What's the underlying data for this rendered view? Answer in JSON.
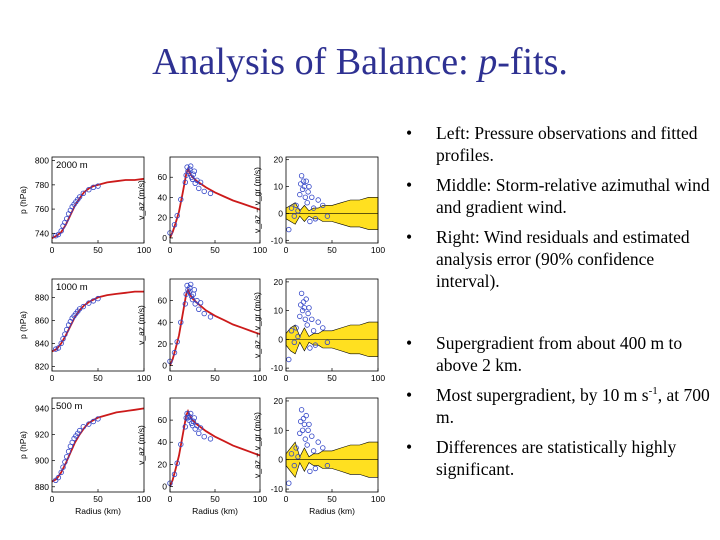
{
  "slide": {
    "title_prefix": "Analysis of Balance: ",
    "title_italic": "p",
    "title_suffix": "-fits.",
    "bullets_top": [
      "Left: Pressure observations and fitted profiles.",
      "Middle: Storm-relative azimuthal wind and gradient wind.",
      "Right: Wind residuals and estimated analysis error (90% confidence interval)."
    ],
    "bullets_bottom": [
      {
        "pre": "Supergradient from about 400 m to above 2 km.",
        "sup": "",
        "post": ""
      },
      {
        "pre": "Most supergradient, by 10 m s",
        "sup": "-1",
        "post": ", at 700 m."
      },
      {
        "pre": "Differences are statistically highly significant.",
        "sup": "",
        "post": ""
      }
    ],
    "bullet_char": "•"
  },
  "colors": {
    "fit_line": "#cc1a1a",
    "obs": "#3346c8",
    "confidence": "#ffe020",
    "title": "#2e3192"
  },
  "chart_data": [
    {
      "type": "scatter",
      "panel": "pressure-2000m",
      "annotation": "2000 m",
      "xlabel": "",
      "ylabel": "p (hPa)",
      "xlim": [
        0,
        100
      ],
      "ylim": [
        732,
        803
      ],
      "xticks": [
        "0",
        "50",
        "100"
      ],
      "yticks": [
        "740",
        "760",
        "780",
        "800"
      ],
      "fit": {
        "x": [
          0,
          5,
          10,
          15,
          20,
          25,
          30,
          35,
          40,
          45,
          50,
          60,
          70,
          80,
          90,
          100
        ],
        "y": [
          736,
          738,
          741,
          747,
          755,
          763,
          769,
          774,
          777,
          779,
          780,
          782,
          783,
          784,
          784,
          785
        ]
      },
      "obs": {
        "x": [
          4,
          7,
          10,
          12,
          14,
          16,
          18,
          20,
          22,
          24,
          26,
          28,
          30,
          34,
          40,
          45,
          50
        ],
        "y": [
          738,
          739,
          742,
          746,
          749,
          752,
          756,
          759,
          762,
          764,
          766,
          768,
          770,
          773,
          776,
          778,
          779
        ]
      }
    },
    {
      "type": "scatter",
      "panel": "pressure-1000m",
      "annotation": "1000 m",
      "xlabel": "",
      "ylabel": "p (hPa)",
      "xlim": [
        0,
        100
      ],
      "ylim": [
        816,
        896
      ],
      "xticks": [
        "0",
        "50",
        "100"
      ],
      "yticks": [
        "820",
        "840",
        "860",
        "880"
      ],
      "fit": {
        "x": [
          0,
          5,
          10,
          15,
          20,
          25,
          30,
          35,
          40,
          45,
          50,
          60,
          70,
          80,
          90,
          100
        ],
        "y": [
          833,
          835,
          840,
          847,
          855,
          863,
          869,
          873,
          876,
          878,
          880,
          882,
          883,
          884,
          885,
          885
        ]
      },
      "obs": {
        "x": [
          4,
          7,
          10,
          12,
          14,
          16,
          18,
          20,
          22,
          24,
          26,
          28,
          30,
          34,
          40,
          45,
          50
        ],
        "y": [
          835,
          836,
          840,
          844,
          848,
          852,
          856,
          859,
          862,
          864,
          866,
          868,
          870,
          872,
          875,
          877,
          879
        ]
      }
    },
    {
      "type": "scatter",
      "panel": "pressure-500m",
      "annotation": "500 m",
      "xlabel": "Radius (km)",
      "ylabel": "p (hPa)",
      "xlim": [
        0,
        100
      ],
      "ylim": [
        876,
        948
      ],
      "xticks": [
        "0",
        "50",
        "100"
      ],
      "yticks": [
        "880",
        "900",
        "920",
        "940"
      ],
      "fit": {
        "x": [
          0,
          5,
          10,
          15,
          20,
          25,
          30,
          35,
          40,
          45,
          50,
          60,
          70,
          80,
          90,
          100
        ],
        "y": [
          884,
          886,
          891,
          898,
          906,
          914,
          920,
          925,
          929,
          931,
          933,
          935,
          937,
          938,
          939,
          940
        ]
      },
      "obs": {
        "x": [
          4,
          7,
          10,
          12,
          14,
          16,
          18,
          20,
          22,
          24,
          26,
          28,
          30,
          34,
          40,
          45,
          50
        ],
        "y": [
          885,
          887,
          891,
          895,
          899,
          903,
          907,
          911,
          914,
          917,
          919,
          921,
          923,
          926,
          928,
          930,
          932
        ]
      }
    },
    {
      "type": "scatter",
      "panel": "wind-2000m",
      "xlabel": "",
      "ylabel": "v_az (m/s)",
      "xlim": [
        0,
        100
      ],
      "ylim": [
        -5,
        80
      ],
      "xticks": [
        "0",
        "50",
        "100"
      ],
      "yticks": [
        "0",
        "20",
        "40",
        "60"
      ],
      "fit": {
        "x": [
          0,
          3,
          6,
          10,
          14,
          18,
          20,
          22,
          25,
          30,
          40,
          50,
          60,
          70,
          80,
          90,
          100
        ],
        "y": [
          0,
          6,
          14,
          26,
          44,
          63,
          68,
          64,
          60,
          56,
          50,
          45,
          41,
          37,
          34,
          31,
          28
        ]
      },
      "obs": {
        "x": [
          0,
          5,
          8,
          12,
          17,
          18,
          19,
          20,
          21,
          22,
          23,
          24,
          25,
          26,
          27,
          28,
          30,
          32,
          34,
          38,
          45
        ],
        "y": [
          5,
          13,
          22,
          38,
          55,
          62,
          70,
          66,
          64,
          68,
          71,
          60,
          58,
          63,
          66,
          54,
          57,
          49,
          55,
          46,
          44
        ]
      }
    },
    {
      "type": "scatter",
      "panel": "wind-1000m",
      "xlabel": "",
      "ylabel": "v_az (m/s)",
      "xlim": [
        0,
        100
      ],
      "ylim": [
        -5,
        80
      ],
      "xticks": [
        "0",
        "50",
        "100"
      ],
      "yticks": [
        "0",
        "20",
        "40",
        "60"
      ],
      "fit": {
        "x": [
          0,
          3,
          6,
          10,
          14,
          18,
          20,
          22,
          25,
          30,
          40,
          50,
          60,
          70,
          80,
          90,
          100
        ],
        "y": [
          0,
          6,
          15,
          28,
          47,
          66,
          70,
          66,
          62,
          58,
          51,
          46,
          42,
          38,
          35,
          32,
          29
        ]
      },
      "obs": {
        "x": [
          0,
          5,
          8,
          12,
          17,
          18,
          19,
          20,
          21,
          22,
          23,
          24,
          25,
          26,
          27,
          28,
          30,
          32,
          34,
          38,
          45
        ],
        "y": [
          4,
          12,
          22,
          40,
          57,
          66,
          74,
          70,
          68,
          72,
          75,
          64,
          61,
          66,
          70,
          57,
          60,
          52,
          58,
          48,
          45
        ]
      }
    },
    {
      "type": "scatter",
      "panel": "wind-500m",
      "xlabel": "Radius (km)",
      "ylabel": "v_az (m/s)",
      "xlim": [
        0,
        100
      ],
      "ylim": [
        -5,
        80
      ],
      "xticks": [
        "0",
        "50",
        "100"
      ],
      "yticks": [
        "0",
        "20",
        "40",
        "60"
      ],
      "fit": {
        "x": [
          0,
          3,
          6,
          10,
          14,
          18,
          20,
          22,
          25,
          30,
          40,
          50,
          60,
          70,
          80,
          90,
          100
        ],
        "y": [
          0,
          6,
          15,
          28,
          46,
          64,
          68,
          64,
          60,
          56,
          50,
          45,
          41,
          37,
          34,
          31,
          28
        ]
      },
      "obs": {
        "x": [
          0,
          5,
          8,
          12,
          17,
          18,
          19,
          20,
          21,
          22,
          23,
          24,
          25,
          26,
          27,
          28,
          30,
          32,
          34,
          38,
          45
        ],
        "y": [
          3,
          11,
          21,
          38,
          54,
          62,
          66,
          62,
          60,
          63,
          66,
          57,
          55,
          59,
          62,
          52,
          55,
          48,
          53,
          45,
          43
        ]
      }
    },
    {
      "type": "area",
      "panel": "residual-2000m",
      "xlabel": "",
      "ylabel": "v_az − v_gr (m/s)",
      "xlim": [
        0,
        100
      ],
      "ylim": [
        -11,
        21
      ],
      "xticks": [
        "0",
        "50",
        "100"
      ],
      "yticks": [
        "-10",
        "0",
        "10",
        "20"
      ],
      "band": {
        "x": [
          0,
          5,
          10,
          15,
          20,
          25,
          30,
          35,
          40,
          50,
          60,
          70,
          80,
          90,
          100
        ],
        "upper": [
          2,
          3,
          4,
          1,
          3,
          1,
          2,
          2,
          3,
          3,
          4,
          5,
          5,
          6,
          6
        ],
        "lower": [
          -2,
          -3,
          -4,
          -1,
          -3,
          -1,
          -2,
          -2,
          -3,
          -3,
          -4,
          -5,
          -5,
          -6,
          -6
        ]
      },
      "obs": {
        "x": [
          3,
          6,
          9,
          11,
          13,
          15,
          16,
          17,
          18,
          19,
          20,
          21,
          22,
          23,
          24,
          25,
          26,
          28,
          30,
          32,
          35,
          40,
          45
        ],
        "y": [
          -6,
          2,
          -1,
          3,
          1,
          7,
          11,
          14,
          9,
          12,
          10,
          6,
          12,
          4,
          8,
          10,
          -3,
          6,
          2,
          -2,
          5,
          3,
          -1
        ]
      }
    },
    {
      "type": "area",
      "panel": "residual-1000m",
      "xlabel": "",
      "ylabel": "v_az − v_gr (m/s)",
      "xlim": [
        0,
        100
      ],
      "ylim": [
        -11,
        21
      ],
      "xticks": [
        "0",
        "50",
        "100"
      ],
      "yticks": [
        "-10",
        "0",
        "10",
        "20"
      ],
      "band": {
        "x": [
          0,
          5,
          10,
          15,
          20,
          25,
          30,
          35,
          40,
          50,
          60,
          70,
          80,
          90,
          100
        ],
        "upper": [
          2,
          4,
          5,
          1,
          4,
          1,
          2,
          2,
          3,
          3,
          4,
          5,
          5,
          6,
          6
        ],
        "lower": [
          -2,
          -4,
          -5,
          -1,
          -4,
          -1,
          -2,
          -2,
          -3,
          -3,
          -4,
          -5,
          -5,
          -6,
          -6
        ]
      },
      "obs": {
        "x": [
          3,
          6,
          9,
          11,
          13,
          15,
          16,
          17,
          18,
          19,
          20,
          21,
          22,
          23,
          24,
          25,
          26,
          28,
          30,
          32,
          35,
          40,
          45
        ],
        "y": [
          -7,
          3,
          -1,
          4,
          1,
          8,
          12,
          16,
          10,
          13,
          11,
          7,
          14,
          5,
          9,
          11,
          -3,
          7,
          3,
          -2,
          6,
          4,
          -1
        ]
      }
    },
    {
      "type": "area",
      "panel": "residual-500m",
      "xlabel": "Radius (km)",
      "ylabel": "v_az − v_gr (m/s)",
      "xlim": [
        0,
        100
      ],
      "ylim": [
        -11,
        21
      ],
      "xticks": [
        "0",
        "50",
        "100"
      ],
      "yticks": [
        "-10",
        "0",
        "10",
        "20"
      ],
      "band": {
        "x": [
          0,
          5,
          10,
          15,
          20,
          25,
          30,
          35,
          40,
          50,
          60,
          70,
          80,
          90,
          100
        ],
        "upper": [
          2,
          4,
          6,
          1,
          4,
          1,
          2,
          2,
          3,
          3,
          4,
          5,
          5,
          6,
          6
        ],
        "lower": [
          -2,
          -4,
          -6,
          -1,
          -4,
          -1,
          -2,
          -2,
          -3,
          -3,
          -4,
          -5,
          -5,
          -6,
          -6
        ]
      },
      "obs": {
        "x": [
          3,
          6,
          9,
          11,
          13,
          15,
          16,
          17,
          18,
          19,
          20,
          21,
          22,
          23,
          24,
          25,
          26,
          28,
          30,
          32,
          35,
          40,
          45
        ],
        "y": [
          -8,
          2,
          -2,
          4,
          1,
          9,
          13,
          17,
          10,
          14,
          12,
          7,
          15,
          5,
          10,
          12,
          -4,
          8,
          3,
          -3,
          6,
          4,
          -2
        ]
      }
    }
  ]
}
